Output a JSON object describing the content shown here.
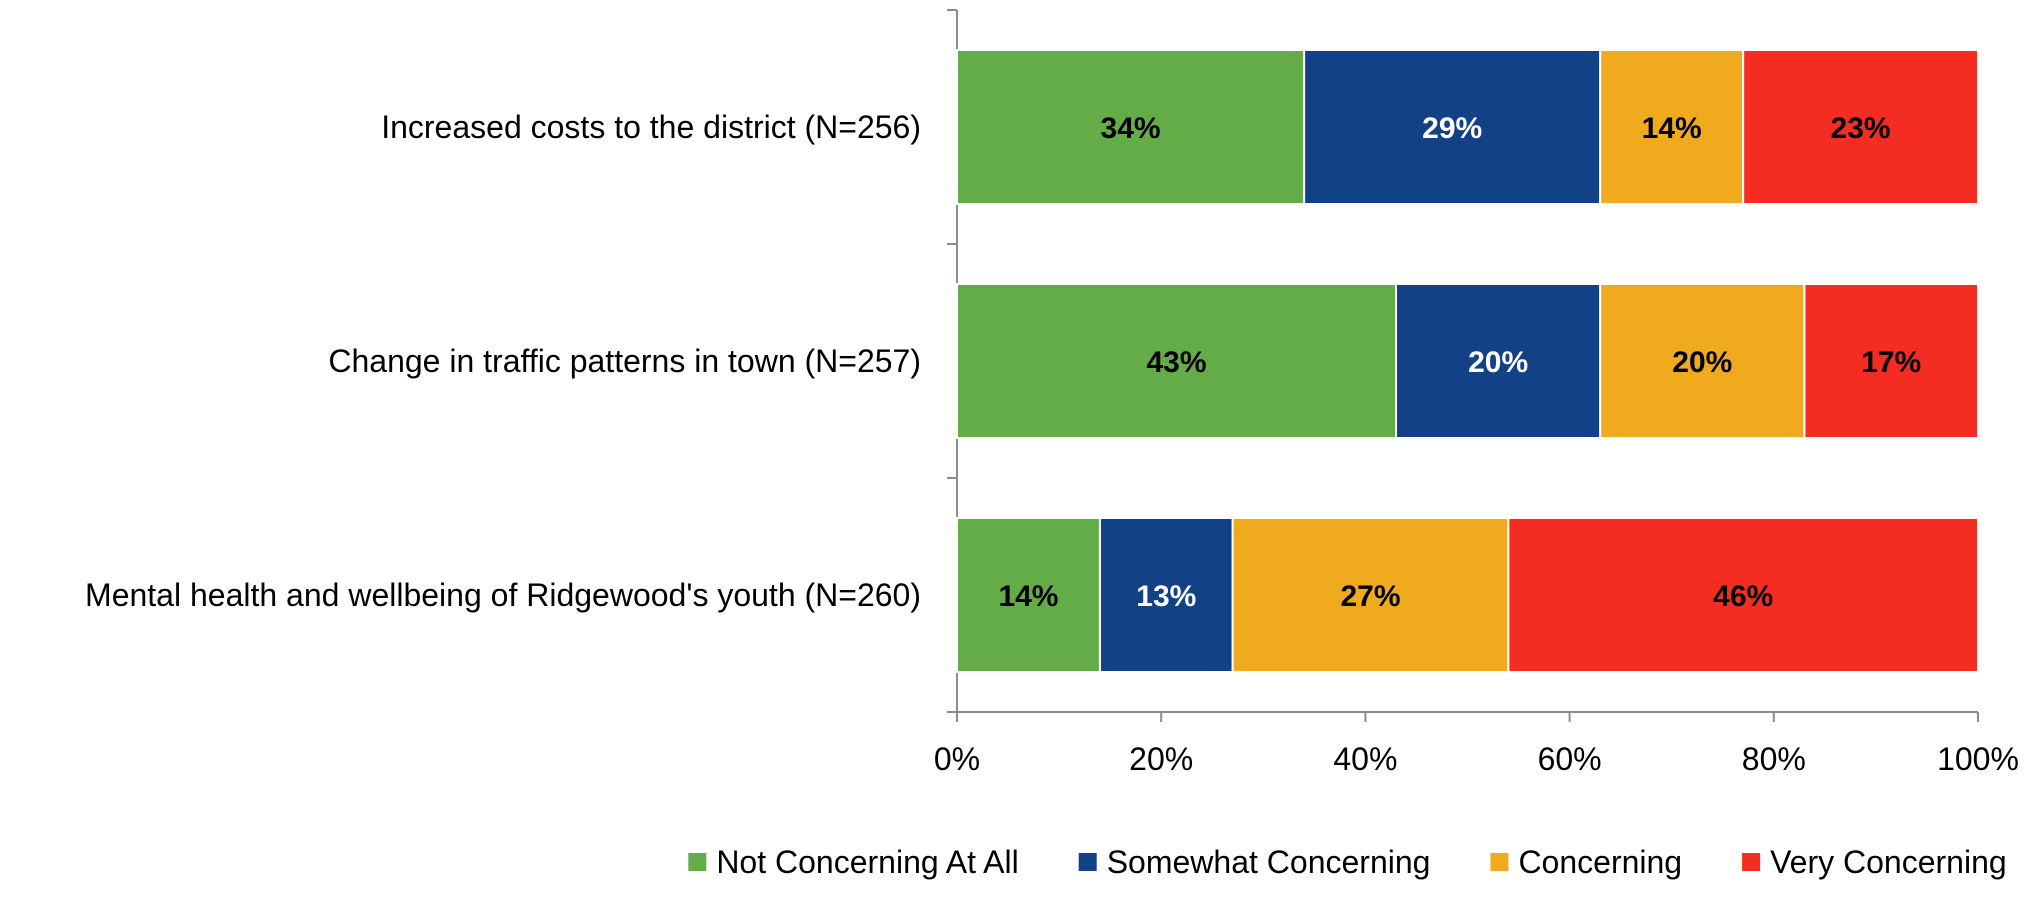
{
  "chart_data": {
    "type": "bar",
    "orientation": "horizontal",
    "stacked": true,
    "percent_stacked": true,
    "categories": [
      "Increased costs to the district (N=256)",
      "Change in traffic patterns in town (N=257)",
      "Mental health and wellbeing of Ridgewood's youth (N=260)"
    ],
    "series": [
      {
        "name": "Not Concerning At All",
        "color": "#63AC47",
        "label_color": "#000000",
        "values": [
          34,
          43,
          14
        ]
      },
      {
        "name": "Somewhat Concerning",
        "color": "#124187",
        "label_color": "#FFFFFF",
        "values": [
          29,
          20,
          13
        ]
      },
      {
        "name": "Concerning",
        "color": "#F0AA1E",
        "label_color": "#000000",
        "values": [
          14,
          20,
          27
        ]
      },
      {
        "name": "Very Concerning",
        "color": "#F52C21",
        "label_color": "#000000",
        "values": [
          23,
          17,
          46
        ]
      }
    ],
    "xlim": [
      0,
      100
    ],
    "x_ticks": [
      0,
      20,
      40,
      60,
      80,
      100
    ],
    "x_tick_labels": [
      "0%",
      "20%",
      "40%",
      "60%",
      "80%",
      "100%"
    ],
    "value_suffix": "%",
    "title": "",
    "xlabel": "",
    "ylabel": "",
    "grid": false,
    "legend_position": "bottom"
  }
}
